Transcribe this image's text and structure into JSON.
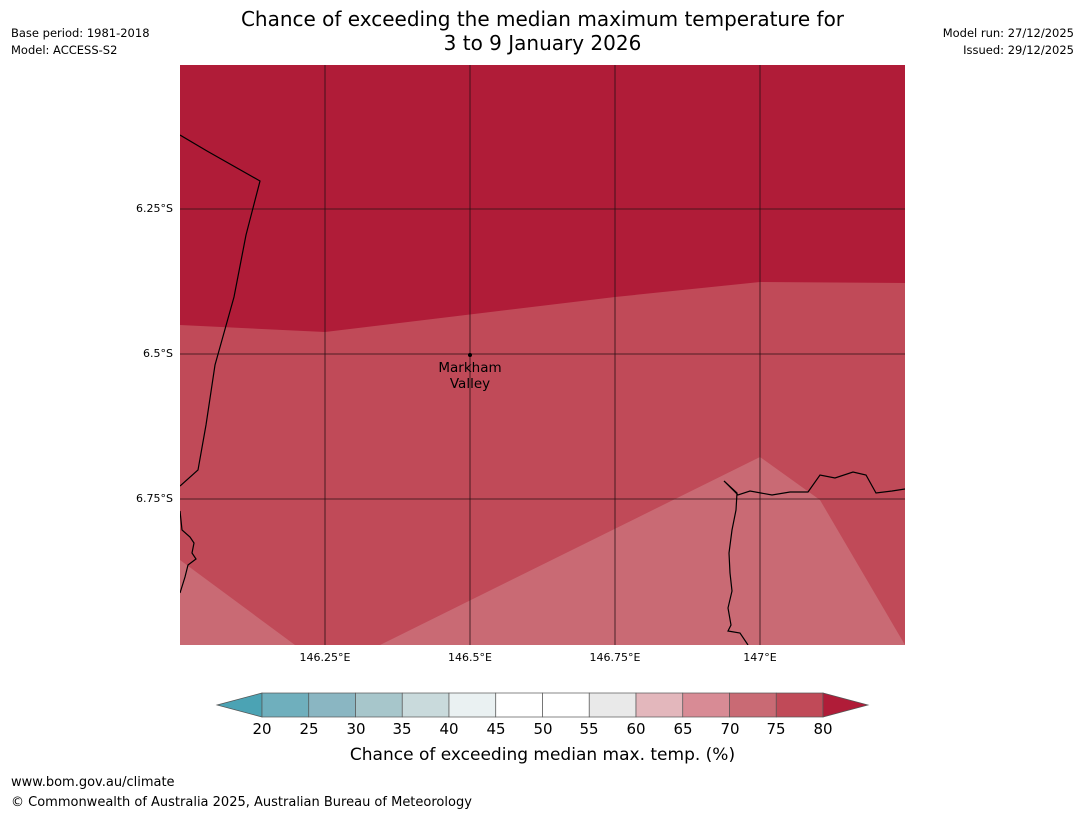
{
  "meta": {
    "base_period": "Base period: 1981-2018",
    "model": "Model: ACCESS-S2",
    "model_run": "Model run: 27/12/2025",
    "issued": "Issued: 29/12/2025"
  },
  "title": {
    "line1": "Chance of exceeding the median maximum temperature for",
    "line2": "3 to 9 January 2026"
  },
  "map": {
    "lat_labels": [
      "6.25°S",
      "6.5°S",
      "6.75°S"
    ],
    "lon_labels": [
      "146.25°E",
      "146.5°E",
      "146.75°E",
      "147°E"
    ],
    "place": {
      "line1": "Markham",
      "line2": "Valley"
    },
    "region_colors": {
      "over_80": "#b01c38",
      "75_80": "#c04a58",
      "70_75": "#c96a74"
    }
  },
  "colorbar": {
    "ticks": [
      "20",
      "25",
      "30",
      "35",
      "40",
      "45",
      "50",
      "55",
      "60",
      "65",
      "70",
      "75",
      "80"
    ],
    "colors": [
      "#4ba3b4",
      "#6fafbd",
      "#8ab6c2",
      "#a7c6cb",
      "#c9dadc",
      "#eaf1f2",
      "#ffffff",
      "#ffffff",
      "#e9e9e9",
      "#e3b7bc",
      "#d88b95",
      "#c96a74",
      "#c04a58",
      "#b01c38"
    ],
    "label": "Chance of exceeding median max. temp. (%)"
  },
  "footer": {
    "url": "www.bom.gov.au/climate",
    "copyright": "© Commonwealth of Australia 2025, Australian Bureau of Meteorology"
  }
}
